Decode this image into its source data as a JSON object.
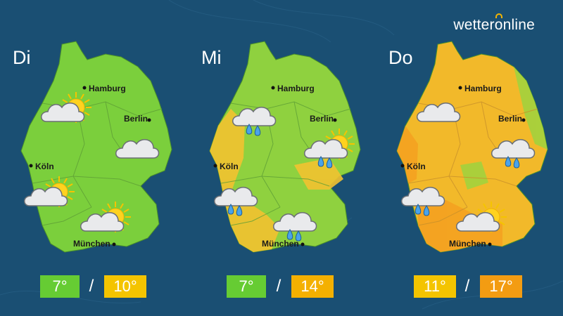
{
  "brand": {
    "part1": "wetter",
    "o": "o",
    "part2": "nline"
  },
  "separator": "/",
  "colors": {
    "background": "#1a4f73",
    "mild": "#66cc33",
    "warm": "#f4c400",
    "warmer": "#f39c12"
  },
  "days": [
    {
      "label": "Di",
      "min": "7°",
      "max": "10°",
      "min_color": "#66cc33",
      "max_color": "#f4c400",
      "map_fill": "#7bcf3c",
      "weather": [
        "cloud-sun",
        "cloud",
        "cloud-sun",
        "cloud-sun"
      ]
    },
    {
      "label": "Mi",
      "min": "7°",
      "max": "14°",
      "min_color": "#66cc33",
      "max_color": "#f4b000",
      "map_fill": "#8fd13f",
      "weather": [
        "cloud-rain",
        "cloud-rain-sun",
        "cloud-rain",
        "cloud-rain"
      ]
    },
    {
      "label": "Do",
      "min": "11°",
      "max": "17°",
      "min_color": "#f4c400",
      "max_color": "#f39c12",
      "map_fill": "#f2b92a",
      "weather": [
        "cloud",
        "cloud-rain",
        "cloud-rain",
        "cloud-sun"
      ]
    }
  ],
  "cities": {
    "hamburg": "Hamburg",
    "berlin": "Berlin",
    "koeln": "Köln",
    "muenchen": "München"
  }
}
